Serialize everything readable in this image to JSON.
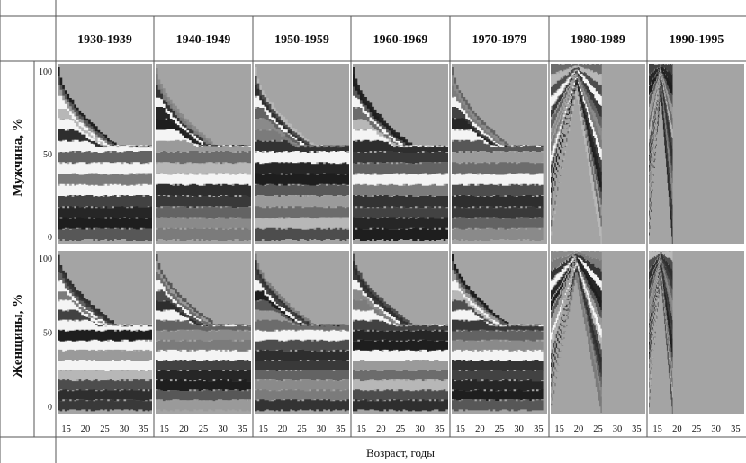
{
  "chart_data": {
    "type": "area",
    "column_headers": [
      "1930-1939",
      "1940-1949",
      "1950-1959",
      "1960-1969",
      "1970-1979",
      "1980-1989",
      "1990-1995"
    ],
    "row_labels": [
      "Мужчина, %",
      "Женщины, %"
    ],
    "y_ticks": [
      "100",
      "50",
      "0"
    ],
    "ylim": [
      0,
      100
    ],
    "x_ticks": [
      "15",
      "20",
      "25",
      "30",
      "35"
    ],
    "xlim": [
      13,
      37
    ],
    "xlabel": "Возраст, годы",
    "grayscale": true,
    "panel_params": [
      {
        "max_age": 37,
        "white_bands": 5,
        "shape": "slope"
      },
      {
        "max_age": 37,
        "white_bands": 3,
        "shape": "slope"
      },
      {
        "max_age": 37,
        "white_bands": 2,
        "shape": "slope"
      },
      {
        "max_age": 37,
        "white_bands": 3,
        "shape": "slope"
      },
      {
        "max_age": 36,
        "white_bands": 3,
        "shape": "slope"
      },
      {
        "max_age": 26,
        "white_bands": 2,
        "shape": "v"
      },
      {
        "max_age": 19,
        "white_bands": 0,
        "shape": "v"
      }
    ],
    "colors": {
      "unfilled": "#a4a4a4",
      "bands": [
        "#1e1e1e",
        "#6c6c6c",
        "#2e2e2e",
        "#8a8a8a",
        "#424242",
        "#575757",
        "#b7b7b7",
        "#393939",
        "#7b7b7b",
        "#262626",
        "#9a9a9a",
        "#4d4d4d",
        "#636363",
        "#333333"
      ]
    }
  }
}
